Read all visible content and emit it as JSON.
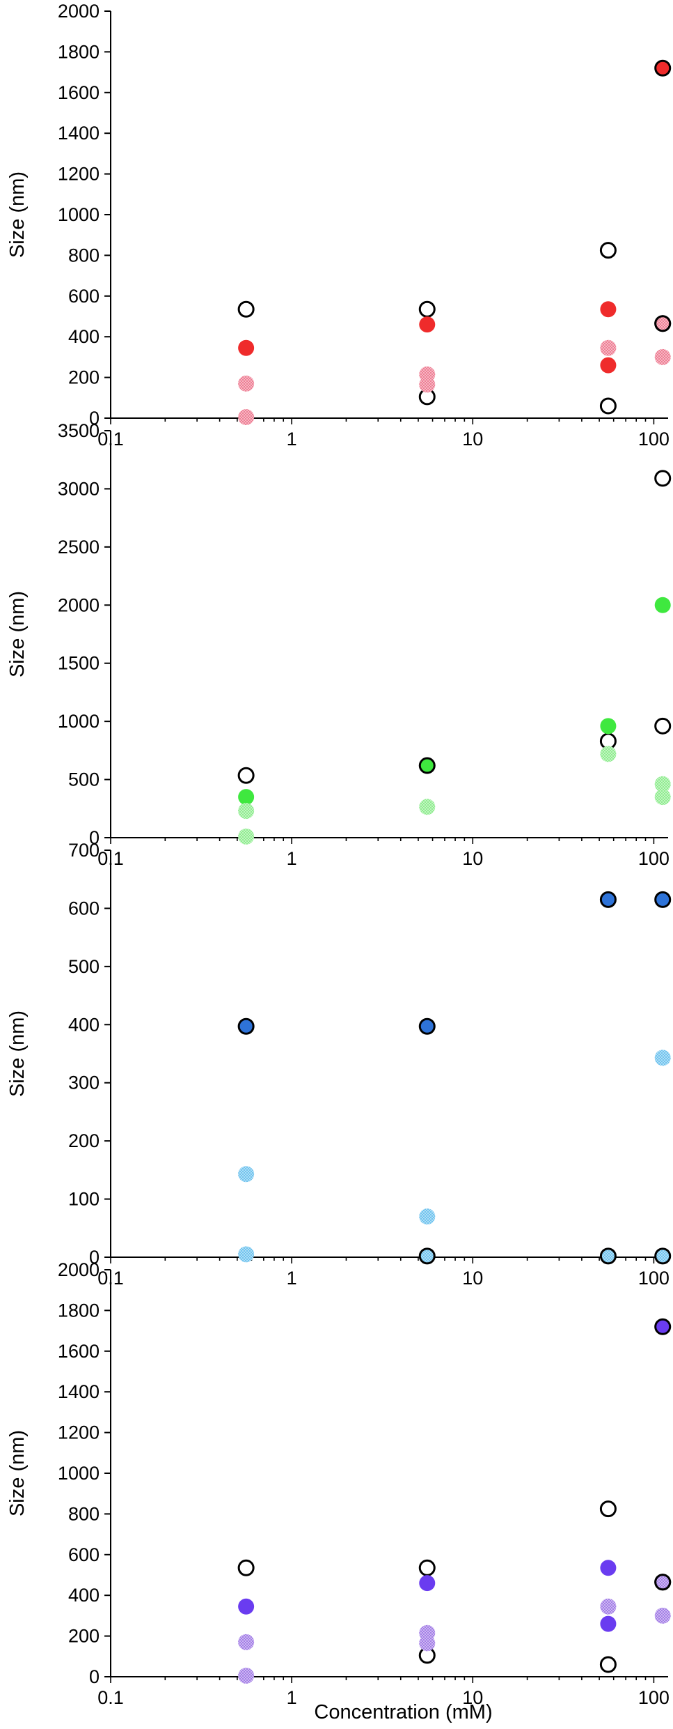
{
  "chart_data": [
    {
      "type": "scatter",
      "xlabel": "",
      "ylabel": "Size (nm)",
      "xscale": "log",
      "xlim": [
        0.1,
        120
      ],
      "ylim": [
        0,
        2000
      ],
      "x_ticks": [
        "0.1",
        "1",
        "10",
        "100"
      ],
      "y_ticks": [
        "0",
        "200",
        "400",
        "600",
        "800",
        "1000",
        "1200",
        "1400",
        "1600",
        "1800",
        "2000"
      ],
      "grid": false,
      "series": [
        {
          "style": "hollow",
          "fill": "#ffffff",
          "stroke": "#000000",
          "points": [
            [
              0.56,
              535
            ],
            [
              5.6,
              535
            ],
            [
              5.6,
              105
            ],
            [
              56,
              825
            ],
            [
              56,
              60
            ],
            [
              112,
              465
            ]
          ]
        },
        {
          "style": "solid",
          "fill": "#ef2b2b",
          "stroke": "none",
          "points": [
            [
              0.56,
              345
            ],
            [
              5.6,
              460
            ],
            [
              56,
              535
            ],
            [
              56,
              260
            ]
          ]
        },
        {
          "style": "solid-outlined",
          "fill": "#ef2b2b",
          "stroke": "#000000",
          "points": [
            [
              112,
              1720
            ]
          ]
        },
        {
          "style": "hatched",
          "fill": "#ee7e94",
          "stroke": "none",
          "points": [
            [
              0.56,
              170
            ],
            [
              0.56,
              5
            ],
            [
              5.6,
              215
            ],
            [
              5.6,
              165
            ],
            [
              56,
              345
            ],
            [
              112,
              300
            ]
          ]
        },
        {
          "style": "hatched-outlined",
          "fill": "#ee7e94",
          "stroke": "#000000",
          "points": [
            [
              112,
              465
            ]
          ]
        }
      ]
    },
    {
      "type": "scatter",
      "xlabel": "",
      "ylabel": "Size (nm)",
      "xscale": "log",
      "xlim": [
        0.1,
        120
      ],
      "ylim": [
        0,
        3500
      ],
      "x_ticks": [
        "0.1",
        "1",
        "10",
        "100"
      ],
      "y_ticks": [
        "0",
        "500",
        "1000",
        "1500",
        "2000",
        "2500",
        "3000",
        "3500"
      ],
      "grid": false,
      "series": [
        {
          "style": "hollow",
          "fill": "#ffffff",
          "stroke": "#000000",
          "points": [
            [
              0.56,
              535
            ],
            [
              56,
              830
            ],
            [
              112,
              3090
            ],
            [
              112,
              960
            ]
          ]
        },
        {
          "style": "solid",
          "fill": "#3fe83f",
          "stroke": "none",
          "points": [
            [
              0.56,
              350
            ],
            [
              56,
              960
            ],
            [
              112,
              2000
            ]
          ]
        },
        {
          "style": "solid-outlined",
          "fill": "#3fe83f",
          "stroke": "#000000",
          "points": [
            [
              5.6,
              620
            ]
          ]
        },
        {
          "style": "hatched",
          "fill": "#8fec8f",
          "stroke": "none",
          "points": [
            [
              0.56,
              230
            ],
            [
              0.56,
              10
            ],
            [
              5.6,
              265
            ],
            [
              56,
              720
            ],
            [
              112,
              460
            ],
            [
              112,
              350
            ]
          ]
        }
      ]
    },
    {
      "type": "scatter",
      "xlabel": "",
      "ylabel": "Size (nm)",
      "xscale": "log",
      "xlim": [
        0.1,
        120
      ],
      "ylim": [
        0,
        700
      ],
      "x_ticks": [
        "0.1",
        "1",
        "10",
        "100"
      ],
      "y_ticks": [
        "0",
        "100",
        "200",
        "300",
        "400",
        "500",
        "600",
        "700"
      ],
      "grid": false,
      "series": [
        {
          "style": "solid-outlined",
          "fill": "#2e73d8",
          "stroke": "#000000",
          "points": [
            [
              0.56,
              397
            ],
            [
              5.6,
              397
            ],
            [
              56,
              615
            ],
            [
              112,
              615
            ]
          ]
        },
        {
          "style": "hatched",
          "fill": "#6fc3ee",
          "stroke": "none",
          "points": [
            [
              0.56,
              143
            ],
            [
              0.56,
              5
            ],
            [
              5.6,
              70
            ],
            [
              112,
              343
            ]
          ]
        },
        {
          "style": "hatched-outlined",
          "fill": "#6fc3ee",
          "stroke": "#000000",
          "points": [
            [
              5.6,
              2
            ],
            [
              56,
              2
            ],
            [
              112,
              2
            ]
          ]
        }
      ]
    },
    {
      "type": "scatter",
      "xlabel": "Concentration (mM)",
      "ylabel": "Size (nm)",
      "xscale": "log",
      "xlim": [
        0.1,
        120
      ],
      "ylim": [
        0,
        2000
      ],
      "x_ticks": [
        "0.1",
        "1",
        "10",
        "100"
      ],
      "y_ticks": [
        "0",
        "200",
        "400",
        "600",
        "800",
        "1000",
        "1200",
        "1400",
        "1600",
        "1800",
        "2000"
      ],
      "grid": false,
      "series": [
        {
          "style": "hollow",
          "fill": "#ffffff",
          "stroke": "#000000",
          "points": [
            [
              0.56,
              535
            ],
            [
              5.6,
              535
            ],
            [
              5.6,
              105
            ],
            [
              56,
              825
            ],
            [
              56,
              60
            ],
            [
              112,
              465
            ]
          ]
        },
        {
          "style": "solid",
          "fill": "#6a3cf0",
          "stroke": "none",
          "points": [
            [
              0.56,
              345
            ],
            [
              5.6,
              460
            ],
            [
              56,
              535
            ],
            [
              56,
              260
            ]
          ]
        },
        {
          "style": "solid-outlined",
          "fill": "#6a3cf0",
          "stroke": "#000000",
          "points": [
            [
              112,
              1720
            ]
          ]
        },
        {
          "style": "hatched",
          "fill": "#a37ee6",
          "stroke": "none",
          "points": [
            [
              0.56,
              170
            ],
            [
              0.56,
              5
            ],
            [
              5.6,
              215
            ],
            [
              5.6,
              165
            ],
            [
              56,
              345
            ],
            [
              112,
              300
            ]
          ]
        },
        {
          "style": "hatched-outlined",
          "fill": "#a37ee6",
          "stroke": "#000000",
          "points": [
            [
              112,
              465
            ]
          ]
        }
      ]
    }
  ]
}
